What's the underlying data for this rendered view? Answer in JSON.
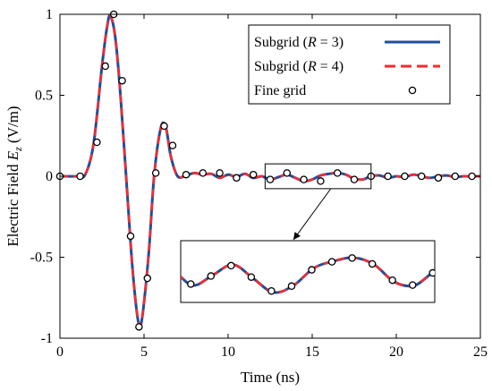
{
  "chart_data": {
    "type": "line",
    "xlabel": "Time (ns)",
    "ylabel_prefix": "Electric Field ",
    "ylabel_symbol": "E",
    "ylabel_subscript": "z",
    "ylabel_suffix": " (V/m)",
    "xlim": [
      0,
      25
    ],
    "ylim": [
      -1,
      1
    ],
    "xticks": [
      0,
      5,
      10,
      15,
      20,
      25
    ],
    "xtick_labels": [
      "0",
      "5",
      "10",
      "15",
      "20",
      "25"
    ],
    "yticks": [
      -1,
      -0.5,
      0,
      0.5,
      1
    ],
    "ytick_labels": [
      "-1",
      "-0.5",
      "0",
      "0.5",
      "1"
    ],
    "grid": false,
    "legend_position": "top-right",
    "legend": [
      {
        "prefix": "Subgrid (",
        "var": "R",
        "suffix": " = 3)",
        "style": "solid",
        "color": "#1f4e9a"
      },
      {
        "prefix": "Subgrid (",
        "var": "R",
        "suffix": " = 4)",
        "style": "dashed",
        "color": "#ff2a2a"
      },
      {
        "label": "Fine grid",
        "style": "marker-circle",
        "color": "#000000"
      }
    ],
    "series": [
      {
        "style": "solid",
        "color": "#1f4e9a",
        "x": [
          0,
          1,
          1.5,
          2,
          2.5,
          2.8,
          3.0,
          3.3,
          3.6,
          4.0,
          4.3,
          4.6,
          4.8,
          5.0,
          5.3,
          5.6,
          6.0,
          6.3,
          6.6,
          7.0,
          7.5,
          8,
          8.5,
          9,
          9.5,
          10,
          10.5,
          11,
          11.5,
          12,
          12.5,
          13,
          13.5,
          14,
          14.5,
          15,
          15.5,
          16,
          16.5,
          17,
          17.5,
          18,
          18.5,
          19,
          19.5,
          20,
          20.5,
          21,
          21.5,
          22,
          22.5,
          23,
          23.5,
          24,
          24.5,
          25
        ],
        "y": [
          0,
          0,
          0.01,
          0.2,
          0.68,
          0.92,
          0.99,
          0.85,
          0.5,
          -0.1,
          -0.55,
          -0.86,
          -0.92,
          -0.78,
          -0.45,
          0.0,
          0.3,
          0.3,
          0.12,
          0.0,
          0.005,
          0.02,
          0.01,
          0.015,
          -0.01,
          0.01,
          -0.005,
          0.015,
          -0.01,
          0.0,
          -0.02,
          -0.005,
          0.01,
          -0.01,
          -0.03,
          -0.02,
          0.005,
          0.015,
          0.02,
          0.01,
          -0.015,
          -0.02,
          0.0,
          0.005,
          -0.01,
          0.0,
          -0.005,
          0.01,
          0.0,
          -0.01,
          0.0,
          0.005,
          -0.005,
          0.0,
          0.0,
          0.0
        ]
      },
      {
        "style": "dashed",
        "color": "#ff2a2a",
        "x": [
          0,
          1,
          1.5,
          2,
          2.5,
          2.8,
          3.0,
          3.3,
          3.6,
          4.0,
          4.3,
          4.6,
          4.8,
          5.0,
          5.3,
          5.6,
          6.0,
          6.3,
          6.6,
          7.0,
          7.5,
          8,
          8.5,
          9,
          9.5,
          10,
          10.5,
          11,
          11.5,
          12,
          12.5,
          13,
          13.5,
          14,
          14.5,
          15,
          15.5,
          16,
          16.5,
          17,
          17.5,
          18,
          18.5,
          19,
          19.5,
          20,
          20.5,
          21,
          21.5,
          22,
          22.5,
          23,
          23.5,
          24,
          24.5,
          25
        ],
        "y": [
          0,
          0,
          0.01,
          0.2,
          0.68,
          0.92,
          0.99,
          0.85,
          0.5,
          -0.1,
          -0.55,
          -0.86,
          -0.92,
          -0.78,
          -0.45,
          0.0,
          0.3,
          0.3,
          0.12,
          0.0,
          0.005,
          0.02,
          0.01,
          0.015,
          -0.01,
          0.01,
          -0.005,
          0.015,
          -0.01,
          0.0,
          -0.02,
          -0.005,
          0.01,
          -0.01,
          -0.03,
          -0.02,
          0.005,
          0.015,
          0.02,
          0.01,
          -0.015,
          -0.02,
          0.0,
          0.005,
          -0.01,
          0.0,
          -0.005,
          0.01,
          0.0,
          -0.01,
          0.0,
          0.005,
          -0.005,
          0.0,
          0.0,
          0.0
        ]
      },
      {
        "style": "marker-circle",
        "color": "#000000",
        "x": [
          0,
          1.2,
          2.2,
          2.7,
          3.2,
          3.7,
          4.2,
          4.7,
          5.2,
          5.7,
          6.2,
          6.7,
          7.5,
          8.5,
          9.5,
          10.5,
          11.5,
          12.5,
          13.5,
          14.5,
          15.5,
          16.5,
          17.5,
          18.5,
          19.5,
          20.5,
          21.5,
          22.5,
          23.5,
          24.5
        ],
        "y": [
          0,
          0,
          0.21,
          0.68,
          1.0,
          0.59,
          -0.37,
          -0.93,
          -0.63,
          0.02,
          0.31,
          0.19,
          0.01,
          0.02,
          0.02,
          -0.01,
          0.01,
          -0.02,
          0.02,
          -0.02,
          -0.03,
          0.02,
          -0.02,
          0.0,
          0.0,
          0.0,
          0.0,
          -0.01,
          0.0,
          0.0
        ]
      }
    ],
    "inset": {
      "source_xlim": [
        12.2,
        18.5
      ],
      "source_ylim": [
        -0.06,
        0.06
      ],
      "arrow": "from region box to inset"
    }
  }
}
